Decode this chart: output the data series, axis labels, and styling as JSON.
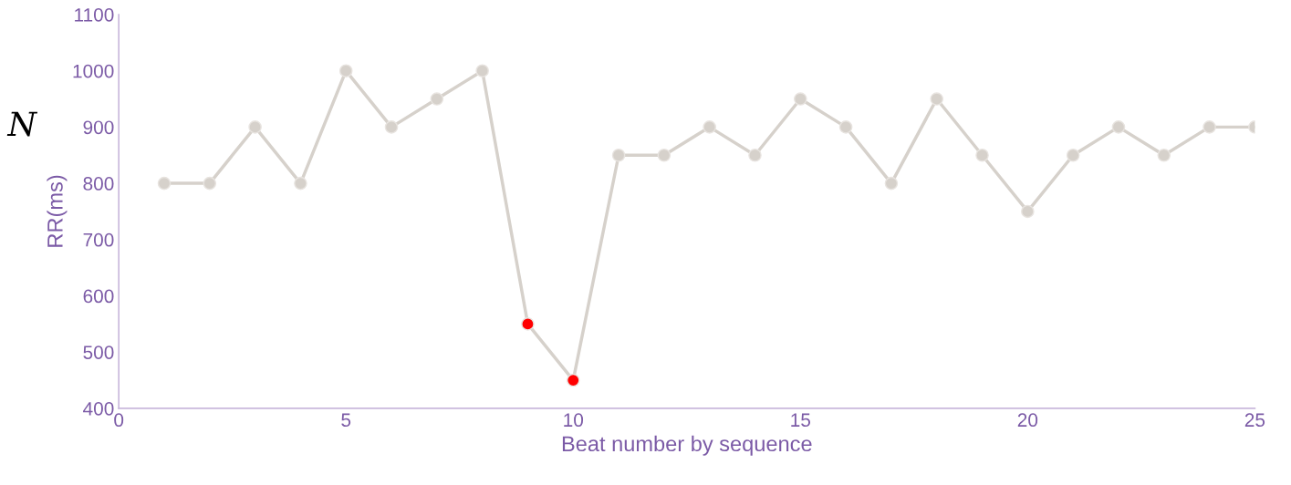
{
  "chart_data": {
    "type": "line",
    "xlabel": "Beat number by sequence",
    "ylabel": "RR(ms)",
    "annotations": [
      "N"
    ],
    "x": [
      1,
      2,
      3,
      4,
      5,
      6,
      7,
      8,
      9,
      10,
      11,
      12,
      13,
      14,
      15,
      16,
      17,
      18,
      19,
      20,
      21,
      22,
      23,
      24,
      25
    ],
    "series": [
      {
        "color": "#d6d1cb",
        "values": [
          800,
          800,
          900,
          800,
          1000,
          900,
          950,
          1000,
          550,
          450,
          850,
          850,
          900,
          850,
          950,
          900,
          800,
          950,
          850,
          750,
          850,
          900,
          850,
          900,
          900
        ],
        "colors": [
          "#d6d1cb",
          "#d6d1cb",
          "#d6d1cb",
          "#d6d1cb",
          "#d6d1cb",
          "#d6d1cb",
          "#d6d1cb",
          "#d6d1cb",
          "#ff0000",
          "#ff0000",
          "#d6d1cb",
          "#d6d1cb",
          "#d6d1cb",
          "#d6d1cb",
          "#d6d1cb",
          "#d6d1cb",
          "#d6d1cb",
          "#d6d1cb",
          "#d6d1cb",
          "#d6d1cb",
          "#d6d1cb",
          "#d6d1cb",
          "#d6d1cb",
          "#d6d1cb",
          "#d6d1cb"
        ]
      }
    ],
    "xlim": [
      0,
      25
    ],
    "xticks": [
      0,
      5,
      10,
      15,
      20,
      25
    ],
    "ylim": [
      400,
      1100
    ],
    "yticks": [
      400,
      500,
      600,
      700,
      800,
      900,
      1000,
      1100
    ],
    "grid": false,
    "legend": false,
    "marker": "circle",
    "line_style": "solid"
  }
}
